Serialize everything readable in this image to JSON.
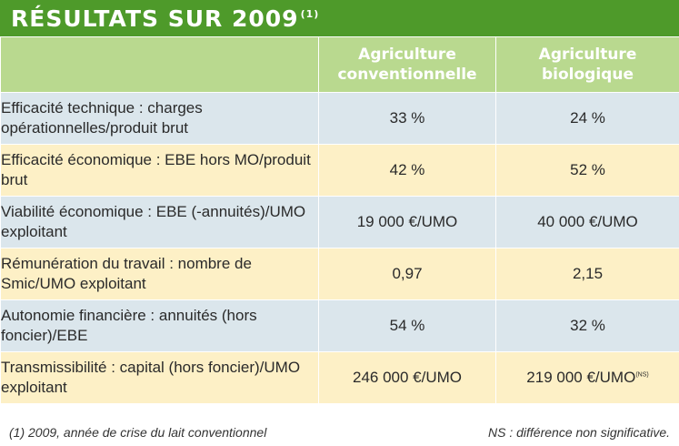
{
  "title": {
    "text": "RÉSULTATS SUR 2009",
    "note": "(1)"
  },
  "columns": [
    "Agriculture conventionnelle",
    "Agriculture biologique"
  ],
  "rows": [
    {
      "label": "Efficacité technique : charges opérationnelles/produit brut",
      "conv": "33 %",
      "bio": "24 %"
    },
    {
      "label": "Efficacité économique : EBE hors MO/produit brut",
      "conv": "42 %",
      "bio": "52 %"
    },
    {
      "label": "Viabilité économique : EBE (-annuités)/UMO exploitant",
      "conv": "19 000 €/UMO",
      "bio": "40 000 €/UMO"
    },
    {
      "label": "Rémunération du travail : nombre de Smic/UMO exploitant",
      "conv": "0,97",
      "bio": "2,15"
    },
    {
      "label": "Autonomie financière : annuités (hors foncier)/EBE",
      "conv": "54 %",
      "bio": "32 %"
    },
    {
      "label": "Transmissibilité : capital (hors foncier)/UMO exploitant",
      "conv": "246 000 €/UMO",
      "bio": "219 000 €/UMO",
      "bio_note": "(NS)"
    }
  ],
  "footnotes": {
    "left": "(1) 2009, année de crise du lait conventionnel",
    "right": "NS : différence non significative."
  },
  "colors": {
    "title_bg": "#4e9a2a",
    "header_bg": "#b9d98f",
    "row_blue": "#dbe6ec",
    "row_yellow": "#fdf0c6"
  }
}
